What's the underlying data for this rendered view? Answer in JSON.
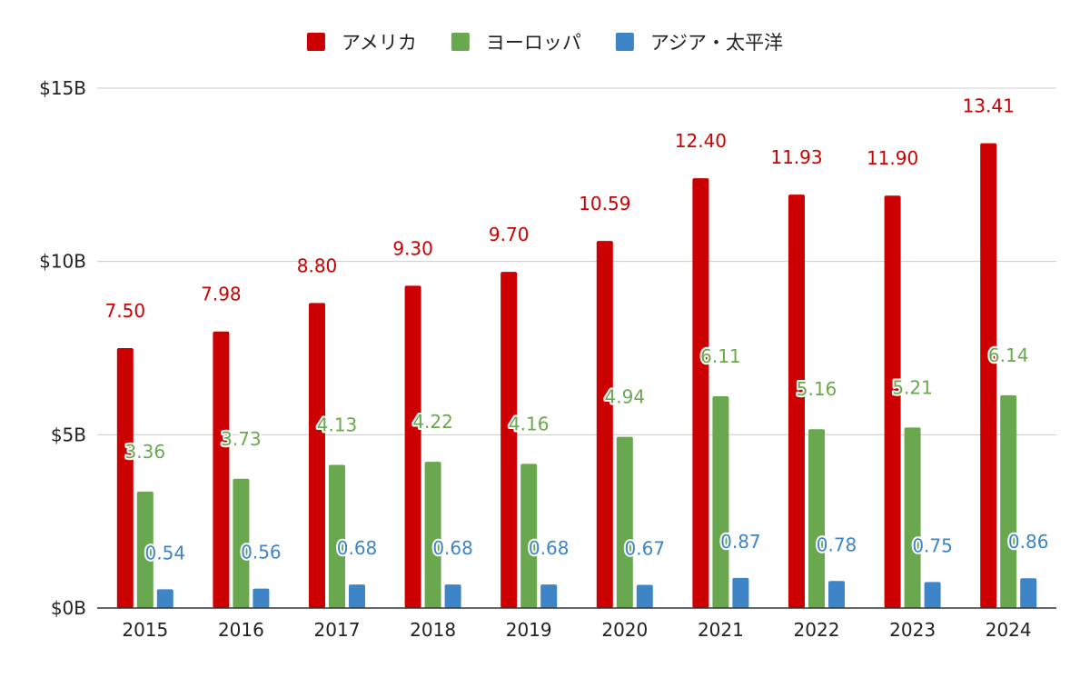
{
  "chart_data": {
    "type": "bar",
    "categories": [
      "2015",
      "2016",
      "2017",
      "2018",
      "2019",
      "2020",
      "2021",
      "2022",
      "2023",
      "2024"
    ],
    "series": [
      {
        "name": "アメリカ",
        "color": "#cc0000",
        "values": [
          7.5,
          7.98,
          8.8,
          9.3,
          9.7,
          10.59,
          12.4,
          11.93,
          11.9,
          13.41
        ],
        "labels": [
          "7.50",
          "7.98",
          "8.80",
          "9.30",
          "9.70",
          "10.59",
          "12.40",
          "11.93",
          "11.90",
          "13.41"
        ]
      },
      {
        "name": "ヨーロッパ",
        "color": "#6aa84f",
        "values": [
          3.36,
          3.73,
          4.13,
          4.22,
          4.16,
          4.94,
          6.11,
          5.16,
          5.21,
          6.14
        ],
        "labels": [
          "3.36",
          "3.73",
          "4.13",
          "4.22",
          "4.16",
          "4.94",
          "6.11",
          "5.16",
          "5.21",
          "6.14"
        ]
      },
      {
        "name": "アジア・太平洋",
        "color": "#3d85c6",
        "values": [
          0.54,
          0.56,
          0.68,
          0.68,
          0.68,
          0.67,
          0.87,
          0.78,
          0.75,
          0.86
        ],
        "labels": [
          "0.54",
          "0.56",
          "0.68",
          "0.68",
          "0.68",
          "0.67",
          "0.87",
          "0.78",
          "0.75",
          "0.86"
        ]
      }
    ],
    "y_ticks": [
      {
        "value": 0,
        "label": "$0B"
      },
      {
        "value": 5,
        "label": "$5B"
      },
      {
        "value": 10,
        "label": "$10B"
      },
      {
        "value": 15,
        "label": "$15B"
      }
    ],
    "ylim": [
      0,
      15
    ],
    "grid": true,
    "legend_position": "top-center",
    "title": "",
    "xlabel": "",
    "ylabel": ""
  }
}
